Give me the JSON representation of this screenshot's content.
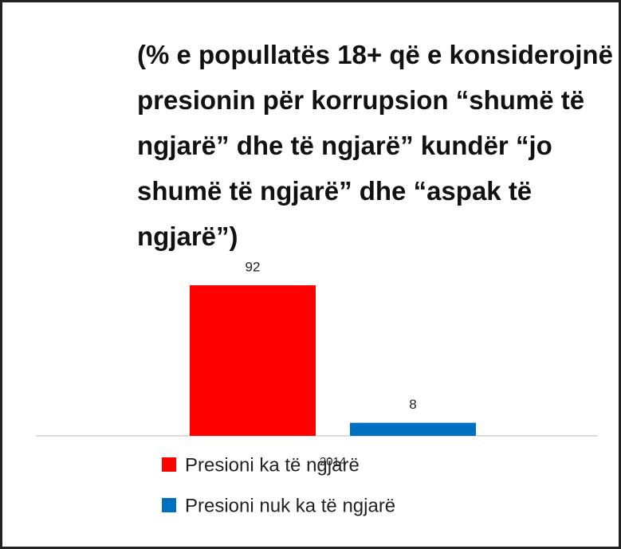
{
  "chart_data": {
    "type": "bar",
    "title": "(% e popullatës 18+ që e konsiderojnë presionin për korrupsion “shumë të ngjarë” dhe të ngjarë” kundër “jo shumë të ngjarë” dhe “aspak të ngjarë”)",
    "categories": [
      "2014"
    ],
    "series": [
      {
        "name": "Presioni ka të ngjarë",
        "color": "#ff0000",
        "values": [
          92
        ]
      },
      {
        "name": "Presioni nuk ka të ngjarë",
        "color": "#0070c0",
        "values": [
          8
        ]
      }
    ],
    "legend": "bottom"
  }
}
